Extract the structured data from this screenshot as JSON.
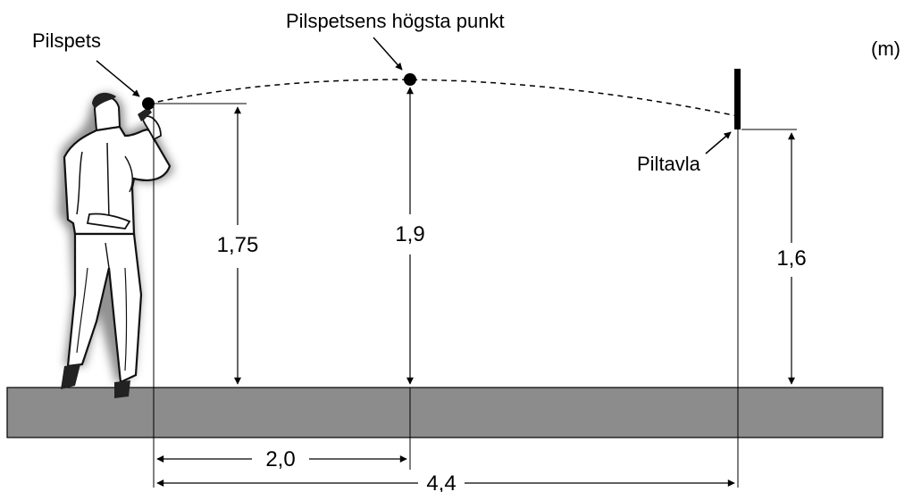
{
  "labels": {
    "dart_tip": "Pilspets",
    "apex": "Pilspetsens högsta punkt",
    "dartboard": "Piltavla",
    "unit": "(m)"
  },
  "dimensions": {
    "release_height": "1,75",
    "apex_height": "1,9",
    "board_height": "1,6",
    "apex_distance": "2,0",
    "board_distance": "4,4"
  },
  "colors": {
    "ground": "#8c8c8c",
    "line": "#000000"
  },
  "icons": {
    "thrower": "person-throwing-dart-icon"
  }
}
